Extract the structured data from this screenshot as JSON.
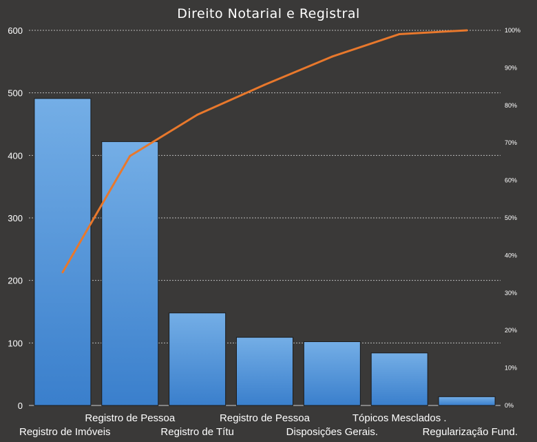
{
  "chart_data": {
    "type": "bar",
    "title": "Direito Notarial e Registral",
    "categories": [
      "Registro de Imóveis",
      "Registro de Pessoa",
      "Registro de Títu",
      "Registro de Pessoa",
      "Disposições Gerais.",
      "Tópicos Mesclados .",
      "Regularização Fund."
    ],
    "series": [
      {
        "type": "bar",
        "values": [
          491,
          422,
          148,
          109,
          102,
          84,
          14
        ]
      },
      {
        "type": "line",
        "axis": "secondary",
        "values": [
          35.5,
          66.5,
          77.5,
          85.5,
          93,
          99,
          100
        ]
      }
    ],
    "ylim": [
      0,
      600
    ],
    "yticks": [
      "0",
      "100",
      "200",
      "300",
      "400",
      "500",
      "600"
    ],
    "y2lim": [
      0,
      100
    ],
    "y2ticks": [
      "0%",
      "10%",
      "20%",
      "30%",
      "40%",
      "50%",
      "60%",
      "70%",
      "80%",
      "90%",
      "100%"
    ],
    "grid": true,
    "legend": "none",
    "colors": {
      "background": "#3a3938",
      "bar": "#4a8fd8",
      "line": "#e8782c",
      "grid": "#bdbdbd",
      "text": "#ffffff"
    }
  }
}
